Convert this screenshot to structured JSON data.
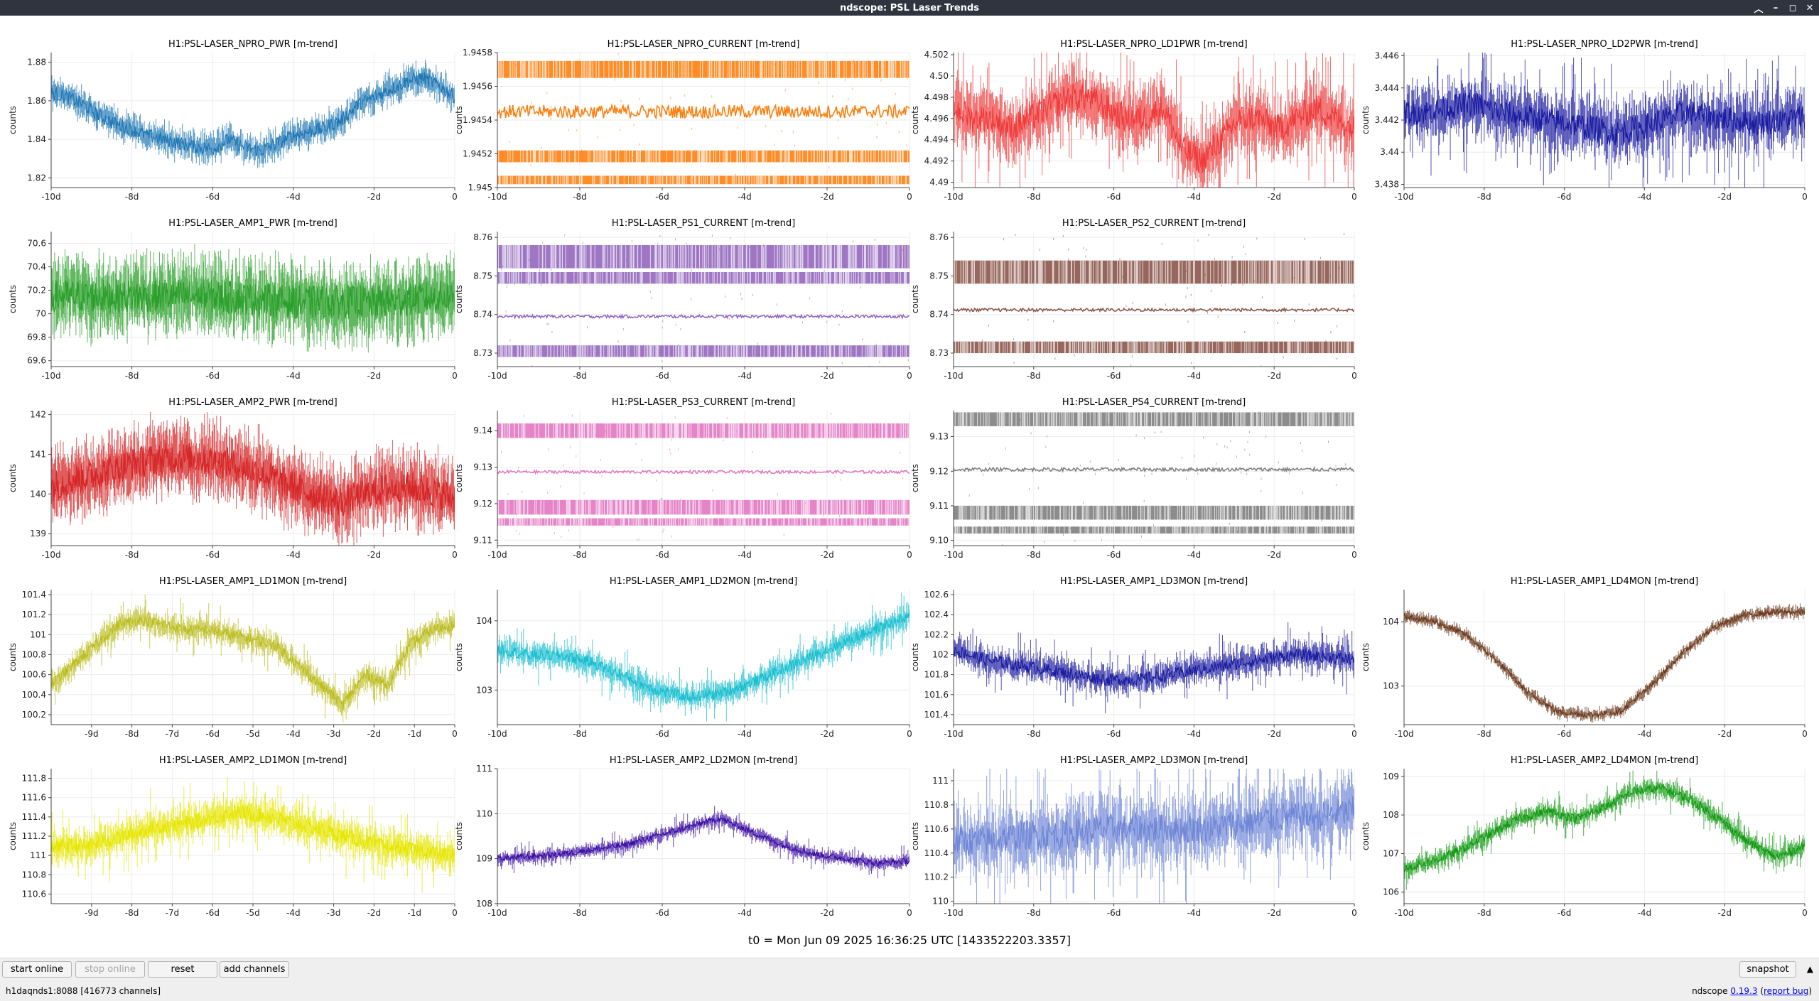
{
  "window": {
    "title": "ndscope: PSL Laser Trends",
    "controls": [
      "︿",
      "–",
      "◻",
      "✕"
    ]
  },
  "plots": [
    {
      "id": "npro-pwr",
      "title": "H1:PSL-LASER_NPRO_PWR [m-trend]",
      "ylabel": "counts",
      "color": "#1f77b4",
      "style": "wavy",
      "ylim": [
        1.815,
        1.885
      ],
      "yticks": [
        1.82,
        1.84,
        1.86,
        1.88
      ],
      "ytick_labels": [
        "1.82",
        "1.84",
        "1.86",
        "1.88"
      ],
      "xlim": [
        -10,
        0
      ],
      "xticks": [
        -10,
        -8,
        -6,
        -4,
        -2,
        0
      ],
      "xtick_labels": [
        "-10d",
        "-8d",
        "-6d",
        "-4d",
        "-2d",
        "0"
      ],
      "trend_centers": [
        1.864,
        1.862,
        1.858,
        1.852,
        1.848,
        1.845,
        1.842,
        1.84,
        1.838,
        1.836,
        1.835,
        1.84,
        1.836,
        1.834,
        1.838,
        1.842,
        1.844,
        1.846,
        1.85,
        1.858,
        1.862,
        1.866,
        1.87,
        1.872,
        1.868,
        1.862
      ],
      "spread": 0.008
    },
    {
      "id": "npro-current",
      "title": "H1:PSL-LASER_NPRO_CURRENT [m-trend]",
      "ylabel": "counts",
      "color": "#ff7f0e",
      "style": "bands",
      "ylim": [
        1.945,
        1.9458
      ],
      "yticks": [
        1.945,
        1.9452,
        1.9454,
        1.9456,
        1.9458
      ],
      "ytick_labels": [
        "1.945",
        "1.9452",
        "1.9454",
        "1.9456",
        "1.9458"
      ],
      "xlim": [
        -10,
        0
      ],
      "xticks": [
        -10,
        -8,
        -6,
        -4,
        -2,
        0
      ],
      "xtick_labels": [
        "-10d",
        "-8d",
        "-6d",
        "-4d",
        "-2d",
        "0"
      ],
      "bands": [
        {
          "lo": 1.94565,
          "hi": 1.94575
        },
        {
          "lo": 1.94515,
          "hi": 1.94522
        },
        {
          "lo": 1.94502,
          "hi": 1.94507
        }
      ],
      "center": 1.94545,
      "center_spread": 4e-05
    },
    {
      "id": "npro-ld1pwr",
      "title": "H1:PSL-LASER_NPRO_LD1PWR [m-trend]",
      "ylabel": "counts",
      "color": "#ef3b3b",
      "style": "spiky",
      "ylim": [
        4.4895,
        4.5022
      ],
      "yticks": [
        4.49,
        4.492,
        4.494,
        4.496,
        4.498,
        4.5,
        4.502
      ],
      "ytick_labels": [
        "4.49",
        "4.492",
        "4.494",
        "4.496",
        "4.498",
        "4.50",
        "4.502"
      ],
      "xlim": [
        -10,
        0
      ],
      "xticks": [
        -10,
        -8,
        -6,
        -4,
        -2,
        0
      ],
      "xtick_labels": [
        "-10d",
        "-8d",
        "-6d",
        "-4d",
        "-2d",
        "0"
      ],
      "trend_centers": [
        4.497,
        4.496,
        4.496,
        4.495,
        4.496,
        4.497,
        4.498,
        4.498,
        4.497,
        4.496,
        4.496,
        4.497,
        4.493,
        4.492,
        4.494,
        4.496,
        4.496,
        4.495,
        4.496,
        4.497,
        4.496,
        4.495
      ],
      "spread": 0.003
    },
    {
      "id": "npro-ld2pwr",
      "title": "H1:PSL-LASER_NPRO_LD2PWR [m-trend]",
      "ylabel": "counts",
      "color": "#1a1aa0",
      "style": "spiky",
      "ylim": [
        3.4378,
        3.4462
      ],
      "yticks": [
        3.438,
        3.44,
        3.442,
        3.444,
        3.446
      ],
      "ytick_labels": [
        "3.438",
        "3.44",
        "3.442",
        "3.444",
        "3.446"
      ],
      "xlim": [
        -10,
        0
      ],
      "xticks": [
        -10,
        -8,
        -6,
        -4,
        -2,
        0
      ],
      "xtick_labels": [
        "-10d",
        "-8d",
        "-6d",
        "-4d",
        "-2d",
        "0"
      ],
      "trend_centers": [
        3.4425,
        3.4425,
        3.4428,
        3.443,
        3.4425,
        3.4422,
        3.442,
        3.4418,
        3.4415,
        3.4412,
        3.4415,
        3.442,
        3.4425,
        3.4422,
        3.442,
        3.4418,
        3.442,
        3.4422
      ],
      "spread": 0.0018
    },
    {
      "id": "amp1-pwr",
      "title": "H1:PSL-LASER_AMP1_PWR [m-trend]",
      "ylabel": "counts",
      "color": "#2ca02c",
      "style": "dense",
      "ylim": [
        69.55,
        70.7
      ],
      "yticks": [
        69.6,
        69.8,
        70,
        70.2,
        70.4,
        70.6
      ],
      "ytick_labels": [
        "69.6",
        "69.8",
        "70",
        "70.2",
        "70.4",
        "70.6"
      ],
      "xlim": [
        -10,
        0
      ],
      "xticks": [
        -10,
        -8,
        -6,
        -4,
        -2,
        0
      ],
      "xtick_labels": [
        "-10d",
        "-8d",
        "-6d",
        "-4d",
        "-2d",
        "0"
      ],
      "trend_centers": [
        70.15,
        70.15,
        70.15,
        70.1,
        70.1,
        70.15
      ],
      "spread": 0.32
    },
    {
      "id": "ps1-current",
      "title": "H1:PSL-LASER_PS1_CURRENT [m-trend]",
      "ylabel": "counts",
      "color": "#9467bd",
      "style": "bands",
      "ylim": [
        8.7265,
        8.7615
      ],
      "yticks": [
        8.73,
        8.74,
        8.75,
        8.76
      ],
      "ytick_labels": [
        "8.73",
        "8.74",
        "8.75",
        "8.76"
      ],
      "xlim": [
        -10,
        0
      ],
      "xticks": [
        -10,
        -8,
        -6,
        -4,
        -2,
        0
      ],
      "xtick_labels": [
        "-10d",
        "-8d",
        "-6d",
        "-4d",
        "-2d",
        "0"
      ],
      "bands": [
        {
          "lo": 8.752,
          "hi": 8.758
        },
        {
          "lo": 8.748,
          "hi": 8.751
        },
        {
          "lo": 8.729,
          "hi": 8.732
        }
      ],
      "center": 8.7395,
      "center_spread": 0.0004
    },
    {
      "id": "ps2-current",
      "title": "H1:PSL-LASER_PS2_CURRENT [m-trend]",
      "ylabel": "counts",
      "color": "#8c564b",
      "style": "bands",
      "ylim": [
        8.7265,
        8.7615
      ],
      "yticks": [
        8.73,
        8.74,
        8.75,
        8.76
      ],
      "ytick_labels": [
        "8.73",
        "8.74",
        "8.75",
        "8.76"
      ],
      "xlim": [
        -10,
        0
      ],
      "xticks": [
        -10,
        -8,
        -6,
        -4,
        -2,
        0
      ],
      "xtick_labels": [
        "-10d",
        "-8d",
        "-6d",
        "-4d",
        "-2d",
        "0"
      ],
      "bands": [
        {
          "lo": 8.748,
          "hi": 8.754
        },
        {
          "lo": 8.73,
          "hi": 8.733
        }
      ],
      "center": 8.7412,
      "center_spread": 0.0004
    },
    {
      "id": "amp2-pwr",
      "title": "H1:PSL-LASER_AMP2_PWR [m-trend]",
      "ylabel": "counts",
      "color": "#d62728",
      "style": "dense",
      "ylim": [
        138.7,
        142.1
      ],
      "yticks": [
        139,
        140,
        141,
        142
      ],
      "ytick_labels": [
        "139",
        "140",
        "141",
        "142"
      ],
      "xlim": [
        -10,
        0
      ],
      "xticks": [
        -10,
        -8,
        -6,
        -4,
        -2,
        0
      ],
      "xtick_labels": [
        "-10d",
        "-8d",
        "-6d",
        "-4d",
        "-2d",
        "0"
      ],
      "trend_centers": [
        140.2,
        140.4,
        140.6,
        140.8,
        140.9,
        140.9,
        140.8,
        140.6,
        140.3,
        140.0,
        139.8,
        140.0,
        140.2,
        140.1,
        139.9
      ],
      "spread": 0.9
    },
    {
      "id": "ps3-current",
      "title": "H1:PSL-LASER_PS3_CURRENT [m-trend]",
      "ylabel": "counts",
      "color": "#e377c2",
      "style": "bands",
      "ylim": [
        9.1085,
        9.1455
      ],
      "yticks": [
        9.11,
        9.12,
        9.13,
        9.14
      ],
      "ytick_labels": [
        "9.11",
        "9.12",
        "9.13",
        "9.14"
      ],
      "xlim": [
        -10,
        0
      ],
      "xticks": [
        -10,
        -8,
        -6,
        -4,
        -2,
        0
      ],
      "xtick_labels": [
        "-10d",
        "-8d",
        "-6d",
        "-4d",
        "-2d",
        "0"
      ],
      "bands": [
        {
          "lo": 9.138,
          "hi": 9.142
        },
        {
          "lo": 9.117,
          "hi": 9.121
        },
        {
          "lo": 9.114,
          "hi": 9.116
        }
      ],
      "center": 9.1287,
      "center_spread": 0.0004
    },
    {
      "id": "ps4-current",
      "title": "H1:PSL-LASER_PS4_CURRENT [m-trend]",
      "ylabel": "counts",
      "color": "#7f7f7f",
      "style": "bands",
      "ylim": [
        9.0985,
        9.1375
      ],
      "yticks": [
        9.1,
        9.11,
        9.12,
        9.13
      ],
      "ytick_labels": [
        "9.10",
        "9.11",
        "9.12",
        "9.13"
      ],
      "xlim": [
        -10,
        0
      ],
      "xticks": [
        -10,
        -8,
        -6,
        -4,
        -2,
        0
      ],
      "xtick_labels": [
        "-10d",
        "-8d",
        "-6d",
        "-4d",
        "-2d",
        "0"
      ],
      "bands": [
        {
          "lo": 9.133,
          "hi": 9.137
        },
        {
          "lo": 9.106,
          "hi": 9.11
        },
        {
          "lo": 9.102,
          "hi": 9.104
        }
      ],
      "center": 9.1205,
      "center_spread": 0.0005
    },
    {
      "id": "amp1-ld1mon",
      "title": "H1:PSL-LASER_AMP1_LD1MON [m-trend]",
      "ylabel": "counts",
      "color": "#bcbd22",
      "style": "spiky",
      "ylim": [
        100.1,
        101.45
      ],
      "yticks": [
        100.2,
        100.4,
        100.6,
        100.8,
        101,
        101.2,
        101.4
      ],
      "ytick_labels": [
        "100.2",
        "100.4",
        "100.6",
        "100.8",
        "101",
        "101.2",
        "101.4"
      ],
      "xlim": [
        -10,
        0
      ],
      "xticks": [
        -9,
        -8,
        -7,
        -6,
        -5,
        -4,
        -3,
        -2,
        -1,
        0
      ],
      "xtick_labels": [
        "-9d",
        "-8d",
        "-7d",
        "-6d",
        "-5d",
        "-4d",
        "-3d",
        "-2d",
        "-1d",
        "0"
      ],
      "trend_centers": [
        100.5,
        100.7,
        100.9,
        101.1,
        101.15,
        101.1,
        101.05,
        101.05,
        101.0,
        100.95,
        100.9,
        100.7,
        100.5,
        100.3,
        100.6,
        100.5,
        100.9,
        101.05,
        101.1
      ],
      "spread": 0.12
    },
    {
      "id": "amp1-ld2mon",
      "title": "H1:PSL-LASER_AMP1_LD2MON [m-trend]",
      "ylabel": "counts",
      "color": "#17becf",
      "style": "spiky",
      "ylim": [
        102.5,
        104.45
      ],
      "yticks": [
        103,
        104
      ],
      "ytick_labels": [
        "103",
        "104"
      ],
      "xlim": [
        -10,
        0
      ],
      "xticks": [
        -10,
        -8,
        -6,
        -4,
        -2,
        0
      ],
      "xtick_labels": [
        "-10d",
        "-8d",
        "-6d",
        "-4d",
        "-2d",
        "0"
      ],
      "trend_centers": [
        103.6,
        103.5,
        103.5,
        103.4,
        103.2,
        103.0,
        102.9,
        102.95,
        103.1,
        103.3,
        103.5,
        103.7,
        103.9,
        104.05
      ],
      "spread": 0.18
    },
    {
      "id": "amp1-ld3mon",
      "title": "H1:PSL-LASER_AMP1_LD3MON [m-trend]",
      "ylabel": "counts",
      "color": "#1c1ca0",
      "style": "spiky",
      "ylim": [
        101.3,
        102.65
      ],
      "yticks": [
        101.4,
        101.6,
        101.8,
        102,
        102.2,
        102.4,
        102.6
      ],
      "ytick_labels": [
        "101.4",
        "101.6",
        "101.8",
        "102",
        "102.2",
        "102.4",
        "102.6"
      ],
      "xlim": [
        -10,
        0
      ],
      "xticks": [
        -10,
        -8,
        -6,
        -4,
        -2,
        0
      ],
      "xtick_labels": [
        "-10d",
        "-8d",
        "-6d",
        "-4d",
        "-2d",
        "0"
      ],
      "trend_centers": [
        102.05,
        101.95,
        101.9,
        101.85,
        101.8,
        101.75,
        101.75,
        101.8,
        101.85,
        101.9,
        101.95,
        102.0,
        101.98,
        101.95
      ],
      "spread": 0.14
    },
    {
      "id": "amp1-ld4mon",
      "title": "H1:PSL-LASER_AMP1_LD4MON [m-trend]",
      "ylabel": "counts",
      "color": "#6b3a1e",
      "style": "wavy",
      "ylim": [
        102.4,
        104.5
      ],
      "yticks": [
        103,
        104
      ],
      "ytick_labels": [
        "103",
        "104"
      ],
      "xlim": [
        -10,
        0
      ],
      "xticks": [
        -10,
        -8,
        -6,
        -4,
        -2,
        0
      ],
      "xtick_labels": [
        "-10d",
        "-8d",
        "-6d",
        "-4d",
        "-2d",
        "0"
      ],
      "trend_centers": [
        104.1,
        104.0,
        103.8,
        103.4,
        102.9,
        102.6,
        102.55,
        102.6,
        103.0,
        103.5,
        103.9,
        104.1,
        104.15,
        104.15
      ],
      "spread": 0.1
    },
    {
      "id": "amp2-ld1mon",
      "title": "H1:PSL-LASER_AMP2_LD1MON [m-trend]",
      "ylabel": "counts",
      "color": "#e6e600",
      "style": "spiky",
      "ylim": [
        110.5,
        111.9
      ],
      "yticks": [
        110.6,
        110.8,
        111,
        111.2,
        111.4,
        111.6,
        111.8
      ],
      "ytick_labels": [
        "110.6",
        "110.8",
        "111",
        "111.2",
        "111.4",
        "111.6",
        "111.8"
      ],
      "xlim": [
        -10,
        0
      ],
      "xticks": [
        -9,
        -8,
        -7,
        -6,
        -5,
        -4,
        -3,
        -2,
        -1,
        0
      ],
      "xtick_labels": [
        "-9d",
        "-8d",
        "-7d",
        "-6d",
        "-5d",
        "-4d",
        "-3d",
        "-2d",
        "-1d",
        "0"
      ],
      "trend_centers": [
        111.1,
        111.1,
        111.2,
        111.3,
        111.35,
        111.45,
        111.4,
        111.3,
        111.2,
        111.1,
        111.05,
        111.0
      ],
      "spread": 0.18
    },
    {
      "id": "amp2-ld2mon",
      "title": "H1:PSL-LASER_AMP2_LD2MON [m-trend]",
      "ylabel": "counts",
      "color": "#3a0ca3",
      "style": "spiky",
      "ylim": [
        108,
        111
      ],
      "yticks": [
        108,
        109,
        110,
        111
      ],
      "ytick_labels": [
        "108",
        "109",
        "110",
        "111"
      ],
      "xlim": [
        -10,
        0
      ],
      "xticks": [
        -10,
        -8,
        -6,
        -4,
        -2,
        0
      ],
      "xtick_labels": [
        "-10d",
        "-8d",
        "-6d",
        "-4d",
        "-2d",
        "0"
      ],
      "trend_centers": [
        109.0,
        109.05,
        109.1,
        109.2,
        109.3,
        109.5,
        109.7,
        109.9,
        109.6,
        109.3,
        109.1,
        109.0,
        108.9,
        108.95
      ],
      "spread": 0.15
    },
    {
      "id": "amp2-ld3mon",
      "title": "H1:PSL-LASER_AMP2_LD3MON [m-trend]",
      "ylabel": "counts",
      "color": "#6f86d6",
      "style": "spiky",
      "ylim": [
        109.98,
        111.1
      ],
      "yticks": [
        110,
        110.2,
        110.4,
        110.6,
        110.8,
        111
      ],
      "ytick_labels": [
        "110",
        "110.2",
        "110.4",
        "110.6",
        "110.8",
        "111"
      ],
      "xlim": [
        -10,
        0
      ],
      "xticks": [
        -10,
        -8,
        -6,
        -4,
        -2,
        0
      ],
      "xtick_labels": [
        "-10d",
        "-8d",
        "-6d",
        "-4d",
        "-2d",
        "0"
      ],
      "trend_centers": [
        110.5,
        110.5,
        110.55,
        110.55,
        110.6,
        110.6,
        110.6,
        110.6,
        110.65,
        110.7,
        110.7,
        110.75
      ],
      "spread": 0.28
    },
    {
      "id": "amp2-ld4mon",
      "title": "H1:PSL-LASER_AMP2_LD4MON [m-trend]",
      "ylabel": "counts",
      "color": "#119911",
      "style": "spiky",
      "ylim": [
        105.7,
        109.2
      ],
      "yticks": [
        106,
        107,
        108,
        109
      ],
      "ytick_labels": [
        "106",
        "107",
        "108",
        "109"
      ],
      "xlim": [
        -10,
        0
      ],
      "xticks": [
        -10,
        -8,
        -6,
        -4,
        -2,
        0
      ],
      "xtick_labels": [
        "-10d",
        "-8d",
        "-6d",
        "-4d",
        "-2d",
        "0"
      ],
      "trend_centers": [
        106.6,
        106.8,
        107.1,
        107.5,
        107.9,
        108.1,
        107.9,
        108.2,
        108.6,
        108.7,
        108.4,
        107.9,
        107.3,
        106.9,
        107.2
      ],
      "spread": 0.25
    }
  ],
  "t0_label": "t0 = Mon Jun 09 2025 16:36:25 UTC [1433522203.3357]",
  "toolbar": {
    "start_online": "start online",
    "stop_online": "stop online",
    "reset": "reset",
    "add_channels": "add channels",
    "snapshot": "snapshot"
  },
  "status": {
    "server": "h1daqnds1:8088  [416773 channels]",
    "app_name": "ndscope",
    "version": "0.19.3",
    "report_bug": "report bug"
  }
}
